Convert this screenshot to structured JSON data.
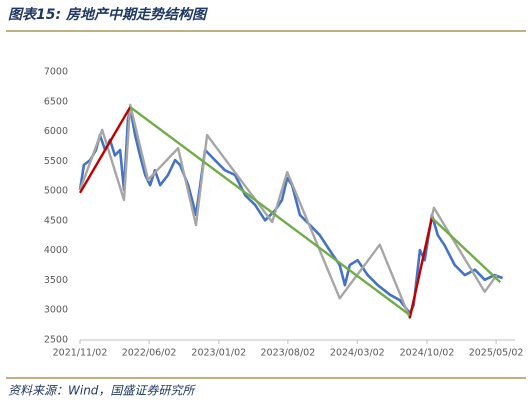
{
  "chart_data": {
    "type": "line",
    "title": "图表15:  房地产中期走势结构图",
    "source": "资料来源：Wind，国盛证券研究所",
    "ylim": [
      2500,
      7000
    ],
    "yticks": [
      2500,
      3000,
      3500,
      4000,
      4500,
      5000,
      5500,
      6000,
      6500,
      7000
    ],
    "xlim": [
      "2021/11/02",
      "2025/06/29"
    ],
    "xticks": [
      "2021/11/02",
      "2022/06/02",
      "2023/01/02",
      "2023/08/02",
      "2024/03/02",
      "2024/10/02",
      "2025/05/02"
    ],
    "series": [
      {
        "color": "#4472c4",
        "x": [
          "2021/11/02",
          "2021/11/14",
          "2021/12/03",
          "2021/12/21",
          "2022/01/02",
          "2022/01/18",
          "2022/02/02",
          "2022/02/17",
          "2022/03/05",
          "2022/03/17",
          "2022/03/29",
          "2022/04/05",
          "2022/04/20",
          "2022/05/05",
          "2022/05/21",
          "2022/06/05",
          "2022/06/20",
          "2022/07/06",
          "2022/07/30",
          "2022/08/21",
          "2022/09/05",
          "2022/09/30",
          "2022/10/24",
          "2022/11/21",
          "2022/12/21",
          "2023/01/21",
          "2023/02/21",
          "2023/03/24",
          "2023/04/23",
          "2023/05/24",
          "2023/06/24",
          "2023/07/15",
          "2023/07/31",
          "2023/08/15",
          "2023/09/08",
          "2023/10/09",
          "2023/11/08",
          "2023/12/08",
          "2024/01/08",
          "2024/01/24",
          "2024/02/08",
          "2024/03/03",
          "2024/04/03",
          "2024/05/04",
          "2024/06/10",
          "2024/07/10",
          "2024/08/10",
          "2024/08/22",
          "2024/09/10",
          "2024/09/25",
          "2024/10/17",
          "2024/11/04",
          "2024/11/25",
          "2024/12/26",
          "2025/01/26",
          "2025/02/26",
          "2025/03/28",
          "2025/04/28",
          "2025/05/22"
        ],
        "values": [
          5020,
          5440,
          5520,
          5690,
          5940,
          5690,
          5860,
          5600,
          5690,
          5020,
          6190,
          6400,
          5940,
          5600,
          5270,
          5100,
          5350,
          5100,
          5270,
          5520,
          5440,
          5100,
          4600,
          5690,
          5520,
          5350,
          5270,
          4930,
          4770,
          4510,
          4680,
          4850,
          5220,
          5100,
          4600,
          4430,
          4260,
          4010,
          3760,
          3420,
          3760,
          3840,
          3590,
          3420,
          3260,
          3170,
          2950,
          3090,
          4010,
          3840,
          4600,
          4260,
          4090,
          3760,
          3590,
          3680,
          3510,
          3590,
          3540
        ]
      },
      {
        "color": "#a6a6a6",
        "x": [
          "2021/11/02",
          "2022/01/09",
          "2022/03/17",
          "2022/04/05",
          "2022/05/30",
          "2022/08/30",
          "2022/10/24",
          "2022/11/27",
          "2023/06/15",
          "2023/07/31",
          "2024/01/08",
          "2024/05/10",
          "2024/08/10",
          "2024/10/23",
          "2025/03/28",
          "2025/05/04"
        ],
        "values": [
          5020,
          6030,
          4850,
          6450,
          5190,
          5720,
          4430,
          5940,
          4480,
          5320,
          3200,
          4100,
          2870,
          4720,
          3310,
          3590
        ]
      },
      {
        "color": "#c00000",
        "x": [
          "2021/11/02",
          "2022/04/05"
        ],
        "values": [
          4970,
          6410
        ]
      },
      {
        "color": "#c00000",
        "x": [
          "2024/08/10",
          "2024/10/17"
        ],
        "values": [
          2870,
          4550
        ]
      },
      {
        "color": "#70ad47",
        "x": [
          "2022/04/05",
          "2024/08/10"
        ],
        "values": [
          6410,
          2920
        ]
      },
      {
        "color": "#70ad47",
        "x": [
          "2024/10/17",
          "2025/05/15"
        ],
        "values": [
          4550,
          3470
        ]
      }
    ]
  }
}
